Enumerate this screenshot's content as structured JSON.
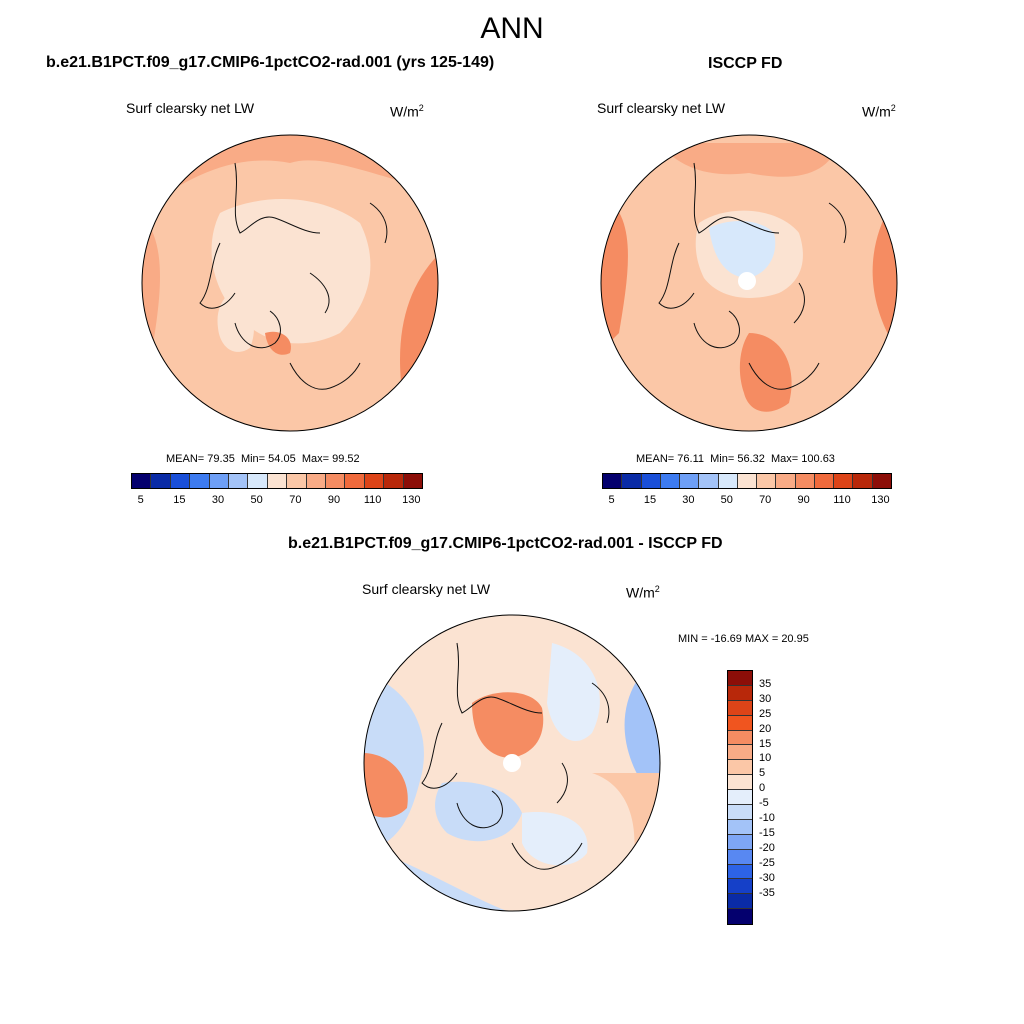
{
  "title": "ANN",
  "panels": [
    {
      "case": "b.e21.B1PCT.f09_g17.CMIP6-1pctCO2-rad.001 (yrs 125-149)",
      "variable": "Surf clearsky net LW",
      "units": "W/m",
      "units_exp": "2",
      "stats": {
        "mean_label": "MEAN=",
        "mean": "79.35",
        "min_label": "Min=",
        "min": "54.05",
        "max_label": "Max=",
        "max": "99.52"
      }
    },
    {
      "case": "ISCCP FD",
      "variable": "Surf clearsky net LW",
      "units": "W/m",
      "units_exp": "2",
      "stats": {
        "mean_label": "MEAN=",
        "mean": "76.11",
        "min_label": "Min=",
        "min": "56.32",
        "max_label": "Max=",
        "max": "100.63"
      }
    },
    {
      "case": "b.e21.B1PCT.f09_g17.CMIP6-1pctCO2-rad.001 - ISCCP FD",
      "variable": "Surf clearsky net LW",
      "units": "W/m",
      "units_exp": "2",
      "minmax": "MIN = -16.69 MAX =  20.95"
    }
  ],
  "abs_colorbar": {
    "colors": [
      "#04006e",
      "#0a2ba6",
      "#1a4fd8",
      "#3d7bf0",
      "#6e9ff6",
      "#a3c3f8",
      "#d7e8fb",
      "#fbe3d2",
      "#fbc7a7",
      "#f9ab86",
      "#f58c62",
      "#f06a3c",
      "#dd4418",
      "#b8280a",
      "#8c0e08"
    ],
    "ticks": [
      "5",
      "15",
      "30",
      "50",
      "70",
      "90",
      "110",
      "130"
    ]
  },
  "diff_colorbar": {
    "colors": [
      "#8c0e08",
      "#b8280a",
      "#dd4418",
      "#f0551f",
      "#f58c62",
      "#f9ab86",
      "#fbc7a7",
      "#fbe3d2",
      "#e4eefb",
      "#c8dcf8",
      "#a3c3f8",
      "#7ea6f5",
      "#5888f2",
      "#2d63e6",
      "#1540c8",
      "#0a2ba6",
      "#04006e"
    ],
    "ticks": [
      "35",
      "30",
      "25",
      "20",
      "15",
      "10",
      "5",
      "0",
      "-5",
      "-10",
      "-15",
      "-20",
      "-25",
      "-30",
      "-35"
    ]
  }
}
